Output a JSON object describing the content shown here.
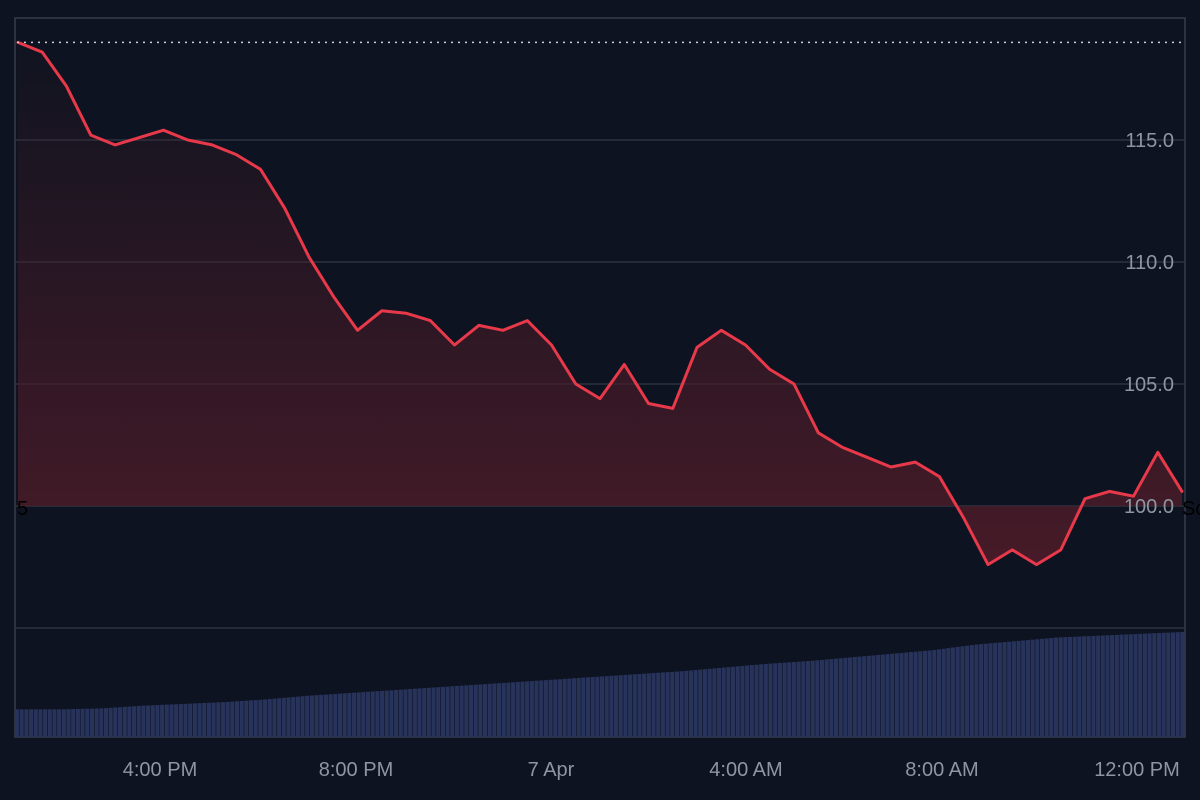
{
  "colors": {
    "background": "#0d1320",
    "grid": "#2c323d",
    "frame": "#363d4a",
    "line": "#e8394a",
    "area_top": "#4a1b28",
    "volume_bar": "#27335a",
    "reference_line": "#c9ced6",
    "axis_text": "#8e96a3"
  },
  "chart_data": {
    "type": "line",
    "title": "",
    "xlabel": "",
    "ylabel": "",
    "y_range": [
      95.0,
      120.0
    ],
    "y_ticks": [
      "115.0",
      "110.0",
      "105.0",
      "100.0"
    ],
    "x_range": [
      "12:10 PM",
      "12:20 PM"
    ],
    "x_ticks": [
      "4:00 PM",
      "8:00 PM",
      "7 Apr",
      "4:00 AM",
      "8:00 AM",
      "12:00 PM"
    ],
    "edge_labels": {
      "left": "5",
      "right": "Sc"
    },
    "reference_line": 119.0,
    "grid": true,
    "legend": "none",
    "series": [
      {
        "x": [
          "12:10 PM",
          "12:50 PM",
          "1:30 PM",
          "2:30 PM",
          "3:00 PM",
          "3:30 PM",
          "4:00 PM",
          "4:30 PM",
          "5:00 PM",
          "5:30 PM",
          "6:00 PM",
          "6:30 PM",
          "7:00 PM",
          "7:30 PM",
          "8:00 PM",
          "8:10 PM",
          "8:30 PM",
          "9:00 PM",
          "9:30 PM",
          "10:00 PM",
          "10:30 PM",
          "11:00 PM",
          "11:30 PM",
          "7 Apr 00:00",
          "00:30 AM",
          "1:00 AM",
          "1:30 AM",
          "2:00 AM",
          "2:30 AM",
          "3:00 AM",
          "3:30 AM",
          "4:00 AM",
          "4:30 AM",
          "5:00 AM",
          "5:30 AM",
          "6:00 AM",
          "6:30 AM",
          "7:00 AM",
          "7:30 AM",
          "8:00 AM",
          "8:30 AM",
          "9:00 AM",
          "9:30 AM",
          "10:00 AM",
          "10:30 AM",
          "11:00 AM",
          "11:30 AM",
          "12:00 PM",
          "12:20 PM"
        ],
        "values": [
          119.0,
          118.6,
          117.2,
          115.2,
          114.8,
          115.1,
          115.4,
          115.0,
          114.8,
          114.4,
          113.8,
          112.2,
          110.2,
          108.6,
          107.2,
          108.0,
          107.9,
          107.6,
          106.6,
          107.4,
          107.2,
          107.6,
          106.6,
          105.0,
          104.4,
          105.8,
          104.2,
          104.0,
          106.5,
          107.2,
          106.6,
          105.6,
          105.0,
          103.0,
          102.4,
          102.0,
          101.6,
          101.8,
          101.2,
          99.5,
          97.6,
          98.2,
          97.6,
          98.2,
          100.3,
          100.6,
          100.4,
          102.2,
          100.6
        ]
      }
    ],
    "volume": {
      "x_range": [
        "12:10 PM",
        "12:20 PM"
      ],
      "levels": [
        0.15,
        0.15,
        0.16,
        0.19,
        0.21,
        0.23,
        0.26,
        0.3,
        0.33,
        0.36,
        0.39,
        0.42,
        0.45,
        0.48,
        0.51,
        0.54,
        0.57,
        0.61,
        0.65,
        0.68,
        0.72,
        0.76,
        0.8,
        0.86,
        0.9,
        0.94,
        0.96,
        0.98,
        1.0
      ]
    }
  }
}
